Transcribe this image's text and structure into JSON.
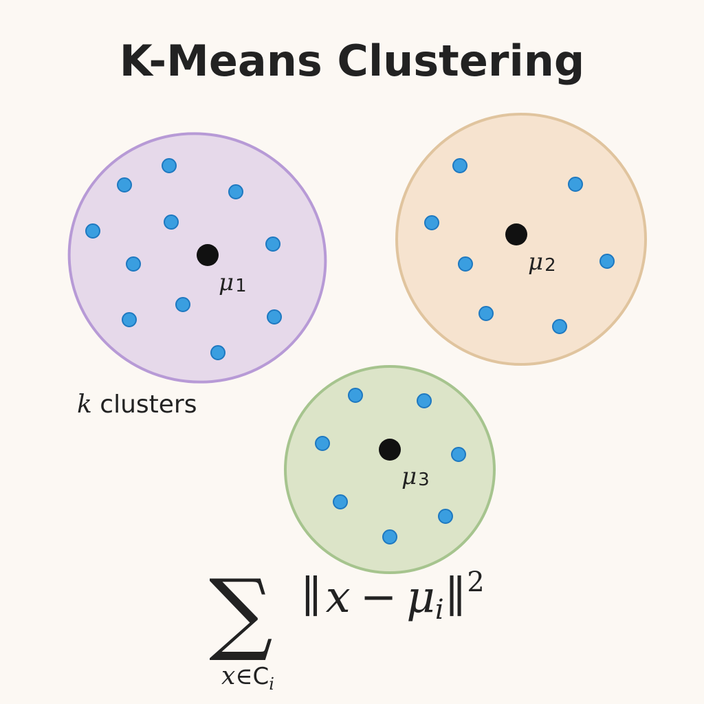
{
  "title": "K-Means Clustering",
  "annotation": {
    "variable": "k",
    "text": "clusters"
  },
  "colors": {
    "point": "#3a9ee0",
    "point_stroke": "#1e78c0",
    "centroid": "#111111"
  },
  "clusters": [
    {
      "id": "cluster-1",
      "centroid_symbol": "μ",
      "centroid_index": "1",
      "fill": "#e6d9ea",
      "stroke": "#b79ad6"
    },
    {
      "id": "cluster-2",
      "centroid_symbol": "μ",
      "centroid_index": "2",
      "fill": "#f6e3cf",
      "stroke": "#e0c49e"
    },
    {
      "id": "cluster-3",
      "centroid_symbol": "μ",
      "centroid_index": "3",
      "fill": "#dce4c8",
      "stroke": "#a6c48e"
    }
  ],
  "formula": {
    "sum_symbol": "∑",
    "lower_var": "x",
    "lower_in": "∈",
    "lower_set": "C",
    "lower_set_index": "i",
    "norm_open": "∥",
    "var_x": "x",
    "minus": "−",
    "var_mu": "μ",
    "mu_index": "i",
    "norm_close": "∥",
    "exponent": "2"
  }
}
